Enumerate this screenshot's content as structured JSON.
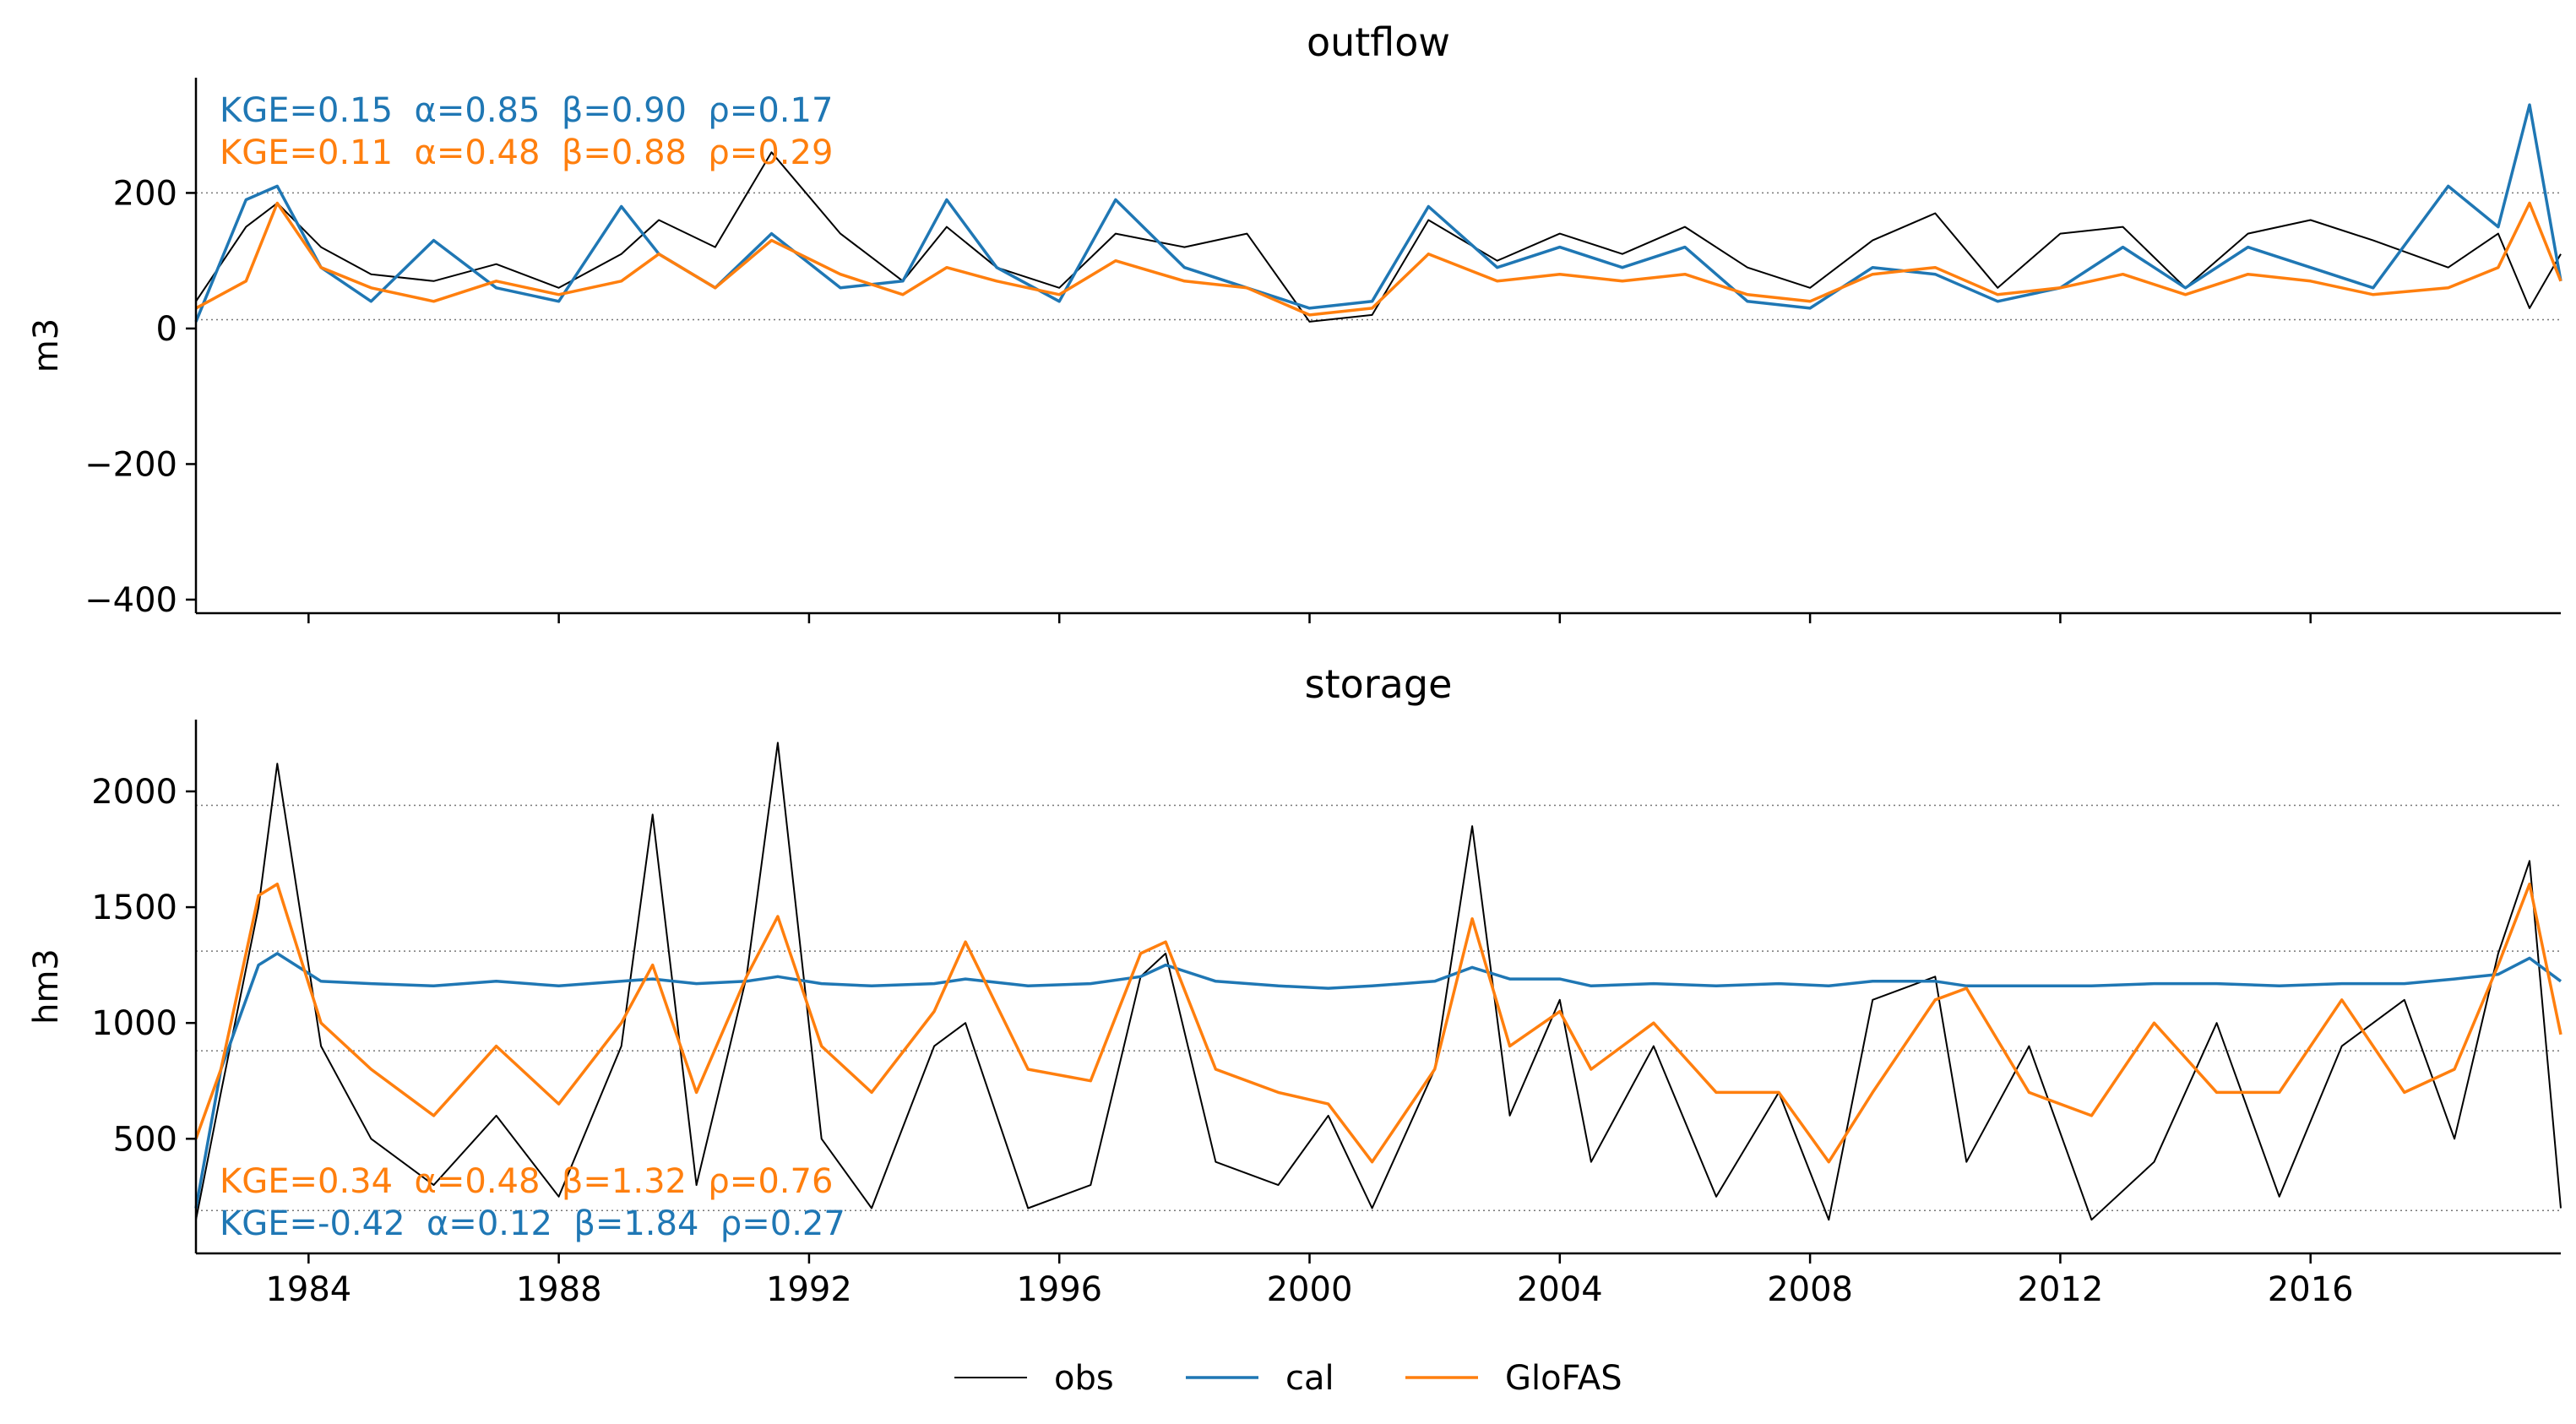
{
  "chart_data": [
    {
      "type": "line",
      "title": "outflow",
      "ylabel": "m3",
      "xlim": [
        1982.2,
        2020.0
      ],
      "ylim": [
        -420,
        370
      ],
      "yticks": [
        -400,
        -200,
        0,
        200
      ],
      "ytick_labels": [
        "−400",
        "−200",
        "0",
        "200"
      ],
      "xticks": [
        1984,
        1988,
        1992,
        1996,
        2000,
        2004,
        2008,
        2012,
        2016
      ],
      "xtick_labels_shown": false,
      "ref_lines": [
        200,
        13
      ],
      "x": [
        1982.2,
        1983.0,
        1983.5,
        1984.2,
        1985.0,
        1986.0,
        1987.0,
        1988.0,
        1989.0,
        1989.6,
        1990.5,
        1991.4,
        1992.5,
        1993.5,
        1994.2,
        1995.0,
        1996.0,
        1996.9,
        1998.0,
        1999.0,
        2000.0,
        2001.0,
        2001.9,
        2003.0,
        2004.0,
        2005.0,
        2006.0,
        2007.0,
        2008.0,
        2009.0,
        2010.0,
        2011.0,
        2012.0,
        2013.0,
        2014.0,
        2015.0,
        2016.0,
        2017.0,
        2018.2,
        2019.0,
        2019.5,
        2020.0
      ],
      "series": [
        {
          "name": "obs",
          "color": "#000000",
          "values": [
            40,
            150,
            185,
            120,
            80,
            70,
            95,
            60,
            110,
            160,
            120,
            260,
            140,
            70,
            150,
            90,
            60,
            140,
            120,
            140,
            10,
            20,
            160,
            100,
            140,
            110,
            150,
            90,
            60,
            130,
            170,
            60,
            140,
            150,
            60,
            140,
            160,
            130,
            90,
            140,
            30,
            110
          ]
        },
        {
          "name": "cal",
          "color": "#1f77b4",
          "values": [
            10,
            190,
            210,
            90,
            40,
            130,
            60,
            40,
            180,
            110,
            60,
            140,
            60,
            70,
            190,
            90,
            40,
            190,
            90,
            60,
            30,
            40,
            180,
            90,
            120,
            90,
            120,
            40,
            30,
            90,
            80,
            40,
            60,
            120,
            60,
            120,
            90,
            60,
            210,
            150,
            330,
            70
          ]
        },
        {
          "name": "GloFAS",
          "color": "#ff7f0e",
          "values": [
            30,
            70,
            185,
            90,
            60,
            40,
            70,
            50,
            70,
            110,
            60,
            130,
            80,
            50,
            90,
            70,
            50,
            100,
            70,
            60,
            20,
            30,
            110,
            70,
            80,
            70,
            80,
            50,
            40,
            80,
            90,
            50,
            60,
            80,
            50,
            80,
            70,
            50,
            60,
            90,
            185,
            70
          ]
        }
      ],
      "annotations": [
        {
          "text": "KGE=0.15  α=0.85  β=0.90  ρ=0.17",
          "color": "#1f77b4"
        },
        {
          "text": "KGE=0.11  α=0.48  β=0.88  ρ=0.29",
          "color": "#ff7f0e"
        }
      ]
    },
    {
      "type": "line",
      "title": "storage",
      "ylabel": "hm3",
      "xlim": [
        1982.2,
        2020.0
      ],
      "ylim": [
        5,
        2310
      ],
      "yticks": [
        500,
        1000,
        1500,
        2000
      ],
      "ytick_labels": [
        "500",
        "1000",
        "1500",
        "2000"
      ],
      "xticks": [
        1984,
        1988,
        1992,
        1996,
        2000,
        2004,
        2008,
        2012,
        2016
      ],
      "xtick_labels": [
        "1984",
        "1988",
        "1992",
        "1996",
        "2000",
        "2004",
        "2008",
        "2012",
        "2016"
      ],
      "ref_lines": [
        1940,
        1310,
        880,
        190
      ],
      "x": [
        1982.2,
        1982.6,
        1983.2,
        1983.5,
        1984.2,
        1985.0,
        1986.0,
        1987.0,
        1988.0,
        1989.0,
        1989.5,
        1990.2,
        1991.0,
        1991.5,
        1992.2,
        1993.0,
        1994.0,
        1994.5,
        1995.5,
        1996.5,
        1997.3,
        1997.7,
        1998.5,
        1999.5,
        2000.3,
        2001.0,
        2002.0,
        2002.6,
        2003.2,
        2004.0,
        2004.5,
        2005.5,
        2006.5,
        2007.5,
        2008.3,
        2009.0,
        2010.0,
        2010.5,
        2011.5,
        2012.5,
        2013.5,
        2014.5,
        2015.5,
        2016.5,
        2017.5,
        2018.3,
        2019.0,
        2019.5,
        2020.0
      ],
      "series": [
        {
          "name": "obs",
          "color": "#000000",
          "values": [
            150,
            700,
            1500,
            2120,
            900,
            500,
            300,
            600,
            250,
            900,
            1900,
            300,
            1200,
            2210,
            500,
            200,
            900,
            1000,
            200,
            300,
            1200,
            1300,
            400,
            300,
            600,
            200,
            800,
            1850,
            600,
            1100,
            400,
            900,
            250,
            700,
            150,
            1100,
            1200,
            400,
            900,
            150,
            400,
            1000,
            250,
            900,
            1100,
            500,
            1300,
            1700,
            200
          ]
        },
        {
          "name": "cal",
          "color": "#1f77b4",
          "values": [
            200,
            800,
            1250,
            1300,
            1180,
            1170,
            1160,
            1180,
            1160,
            1180,
            1190,
            1170,
            1180,
            1200,
            1170,
            1160,
            1170,
            1190,
            1160,
            1170,
            1200,
            1250,
            1180,
            1160,
            1150,
            1160,
            1180,
            1240,
            1190,
            1190,
            1160,
            1170,
            1160,
            1170,
            1160,
            1180,
            1180,
            1160,
            1160,
            1160,
            1170,
            1170,
            1160,
            1170,
            1170,
            1190,
            1210,
            1280,
            1180
          ]
        },
        {
          "name": "GloFAS",
          "color": "#ff7f0e",
          "values": [
            500,
            800,
            1550,
            1600,
            1000,
            800,
            600,
            900,
            650,
            1000,
            1250,
            700,
            1200,
            1460,
            900,
            700,
            1050,
            1350,
            800,
            750,
            1300,
            1350,
            800,
            700,
            650,
            400,
            800,
            1450,
            900,
            1050,
            800,
            1000,
            700,
            700,
            400,
            700,
            1100,
            1150,
            700,
            600,
            1000,
            700,
            700,
            1100,
            700,
            800,
            1250,
            1600,
            950
          ]
        }
      ],
      "annotations": [
        {
          "text": "KGE=0.34  α=0.48  β=1.32  ρ=0.76",
          "color": "#ff7f0e"
        },
        {
          "text": "KGE=-0.42  α=0.12  β=1.84  ρ=0.27",
          "color": "#1f77b4"
        }
      ]
    }
  ],
  "legend": {
    "placement": "bottom-center",
    "entries": [
      {
        "name": "obs",
        "color": "#000000"
      },
      {
        "name": "cal",
        "color": "#1f77b4"
      },
      {
        "name": "GloFAS",
        "color": "#ff7f0e"
      }
    ]
  }
}
